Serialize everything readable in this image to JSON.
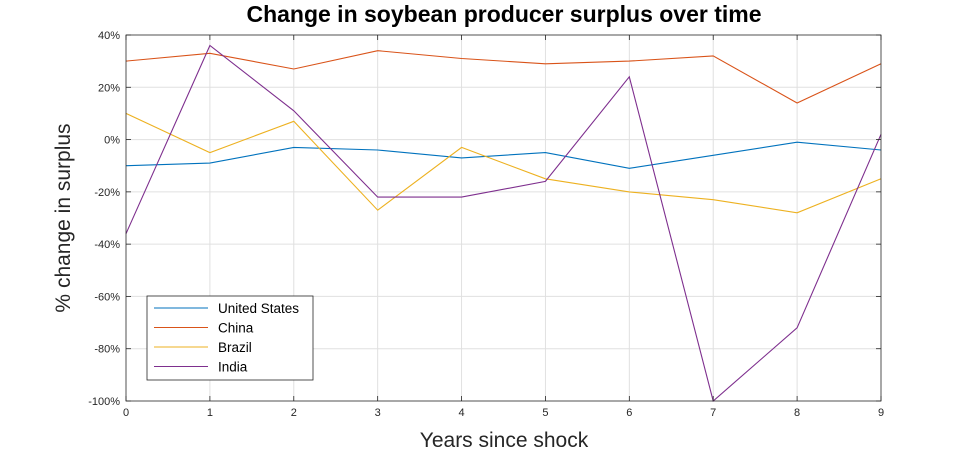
{
  "chart_data": {
    "type": "line",
    "title": "Change in soybean producer surplus over time",
    "xlabel": "Years since shock",
    "ylabel": "% change in surplus",
    "x": [
      0,
      1,
      2,
      3,
      4,
      5,
      6,
      7,
      8,
      9
    ],
    "xlim": [
      0,
      9
    ],
    "ylim": [
      -100,
      40
    ],
    "x_ticks": [
      0,
      1,
      2,
      3,
      4,
      5,
      6,
      7,
      8,
      9
    ],
    "x_tick_labels": [
      "0",
      "1",
      "2",
      "3",
      "4",
      "5",
      "6",
      "7",
      "8",
      "9"
    ],
    "y_ticks": [
      40,
      20,
      0,
      -20,
      -40,
      -60,
      -80,
      -100
    ],
    "y_tick_labels": [
      "40%",
      "20%",
      "0%",
      "-20%",
      "-40%",
      "-60%",
      "-80%",
      "-100%"
    ],
    "grid": true,
    "legend_position": "bottom-left",
    "series": [
      {
        "name": "United States",
        "color": "#0072BD",
        "values": [
          -10,
          -9,
          -3,
          -4,
          -7,
          -5,
          -11,
          -6,
          -1,
          -4
        ]
      },
      {
        "name": "China",
        "color": "#D95319",
        "values": [
          30,
          33,
          27,
          34,
          31,
          29,
          30,
          32,
          14,
          29
        ]
      },
      {
        "name": "Brazil",
        "color": "#EDB120",
        "values": [
          10,
          -5,
          7,
          -27,
          -3,
          -15,
          -20,
          -23,
          -28,
          -15
        ]
      },
      {
        "name": "India",
        "color": "#7E2F8E",
        "values": [
          -36,
          36,
          11,
          -22,
          -22,
          -16,
          24,
          -100,
          -72,
          2
        ]
      }
    ]
  }
}
